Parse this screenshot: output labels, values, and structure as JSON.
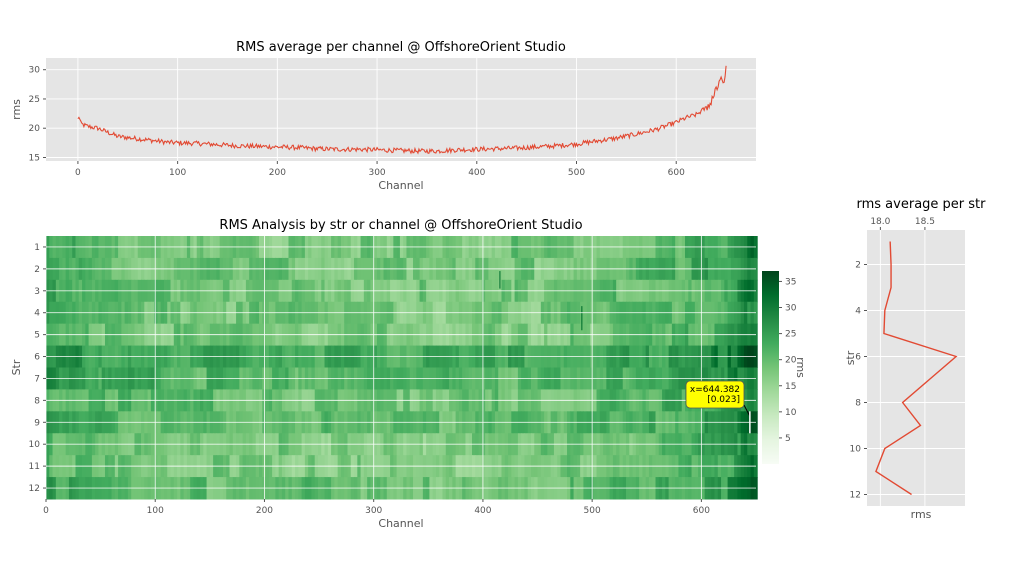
{
  "chart_data": [
    {
      "id": "top",
      "type": "line",
      "title": "RMS average per channel @ OffshoreOrient Studio",
      "xlabel": "Channel",
      "ylabel": "rms",
      "xlim": [
        -32,
        680
      ],
      "ylim": [
        14.4,
        32.0
      ],
      "xticks": [
        0,
        100,
        200,
        300,
        400,
        500,
        600
      ],
      "yticks": [
        15,
        20,
        25,
        30
      ],
      "grid": true,
      "color": "#E24A33",
      "series": [
        {
          "x": [
            0,
            1,
            3,
            5,
            10,
            20,
            30,
            40,
            50,
            60,
            70,
            80,
            90,
            100,
            120,
            140,
            160,
            180,
            200,
            220,
            240,
            260,
            280,
            300,
            320,
            340,
            360,
            380,
            400,
            420,
            440,
            460,
            480,
            500,
            520,
            540,
            560,
            580,
            600,
            610,
            620,
            630,
            635,
            640,
            645,
            648,
            650
          ],
          "y": [
            21.5,
            22.0,
            20.8,
            20.6,
            20.3,
            20.0,
            19.3,
            18.6,
            18.4,
            18.2,
            18.0,
            17.8,
            17.6,
            17.5,
            17.4,
            17.2,
            17.0,
            16.9,
            16.8,
            16.7,
            16.5,
            16.4,
            16.4,
            16.3,
            16.2,
            16.1,
            16.1,
            16.3,
            16.4,
            16.5,
            16.6,
            16.8,
            17.0,
            17.3,
            17.8,
            18.3,
            19.0,
            19.8,
            21.0,
            21.8,
            22.3,
            23.5,
            24.5,
            26.5,
            28.5,
            27.0,
            31.5
          ]
        }
      ]
    },
    {
      "id": "heatmap",
      "type": "heatmap",
      "title": "RMS Analysis by str or channel @ OffshoreOrient Studio",
      "xlabel": "Channel",
      "ylabel": "Str",
      "xlim": [
        0,
        650
      ],
      "xticks": [
        0,
        100,
        200,
        300,
        400,
        500,
        600
      ],
      "rows": [
        "1",
        "2",
        "3",
        "4",
        "5",
        "6",
        "7",
        "8",
        "9",
        "10",
        "11",
        "12"
      ],
      "colormap": "Greens",
      "color_range": [
        0,
        37
      ],
      "row_means": [
        18.11,
        18.12,
        18.12,
        18.05,
        18.04,
        18.85,
        18.55,
        18.25,
        18.45,
        18.05,
        17.95,
        18.35
      ],
      "channel_trend_ref": "top",
      "colorbar": {
        "label": "rms",
        "ticks": [
          5,
          10,
          15,
          20,
          25,
          30,
          35
        ]
      },
      "annotation": {
        "label": "x=644.382\n[0.023]",
        "x": 644.382,
        "row": 9,
        "value": 0.023
      }
    },
    {
      "id": "side",
      "type": "line",
      "title": "rms average per str",
      "xlabel": "rms",
      "ylabel": "str",
      "xlim": [
        17.85,
        18.95
      ],
      "ylim": [
        12.5,
        0.5
      ],
      "xticks": [
        18.0,
        18.5
      ],
      "yticks": [
        2,
        4,
        6,
        8,
        10,
        12
      ],
      "xaxis_position": "top",
      "grid": true,
      "color": "#E24A33",
      "series": [
        {
          "x": [
            18.11,
            18.12,
            18.12,
            18.05,
            18.04,
            18.85,
            18.55,
            18.25,
            18.45,
            18.05,
            17.95,
            18.35
          ],
          "y": [
            1,
            2,
            3,
            4,
            5,
            6,
            7,
            8,
            9,
            10,
            11,
            12
          ]
        }
      ]
    }
  ]
}
